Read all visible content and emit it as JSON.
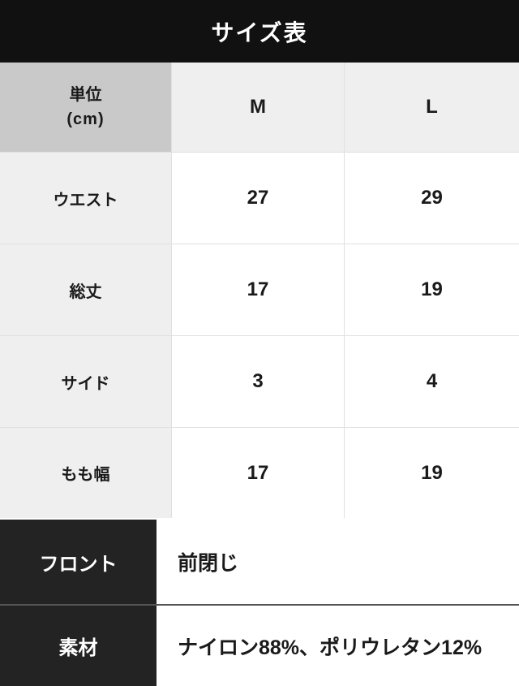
{
  "title": "サイズ表",
  "table": {
    "unit_label": "単位",
    "unit_sublabel": "(cm)",
    "columns": [
      "M",
      "L"
    ],
    "rows": [
      {
        "label": "ウエスト",
        "values": [
          "27",
          "29"
        ]
      },
      {
        "label": "総丈",
        "values": [
          "17",
          "19"
        ]
      },
      {
        "label": "サイド",
        "values": [
          "3",
          "4"
        ]
      },
      {
        "label": "もも幅",
        "values": [
          "17",
          "19"
        ]
      }
    ]
  },
  "info": {
    "rows": [
      {
        "label": "フロント",
        "value": "前閉じ"
      },
      {
        "label": "素材",
        "value": "ナイロン88%、ポリウレタン12%"
      }
    ]
  },
  "colors": {
    "title_bar_bg": "#111111",
    "unit_cell_bg": "#c9c9c9",
    "header_cell_bg": "#efefef",
    "label_cell_bg": "#efefef",
    "value_cell_bg": "#ffffff",
    "grid_line": "#e0e0e0",
    "info_label_bg": "#232323",
    "info_divider": "#555555",
    "text_dark": "#1a1a1a",
    "text_light": "#ffffff"
  }
}
